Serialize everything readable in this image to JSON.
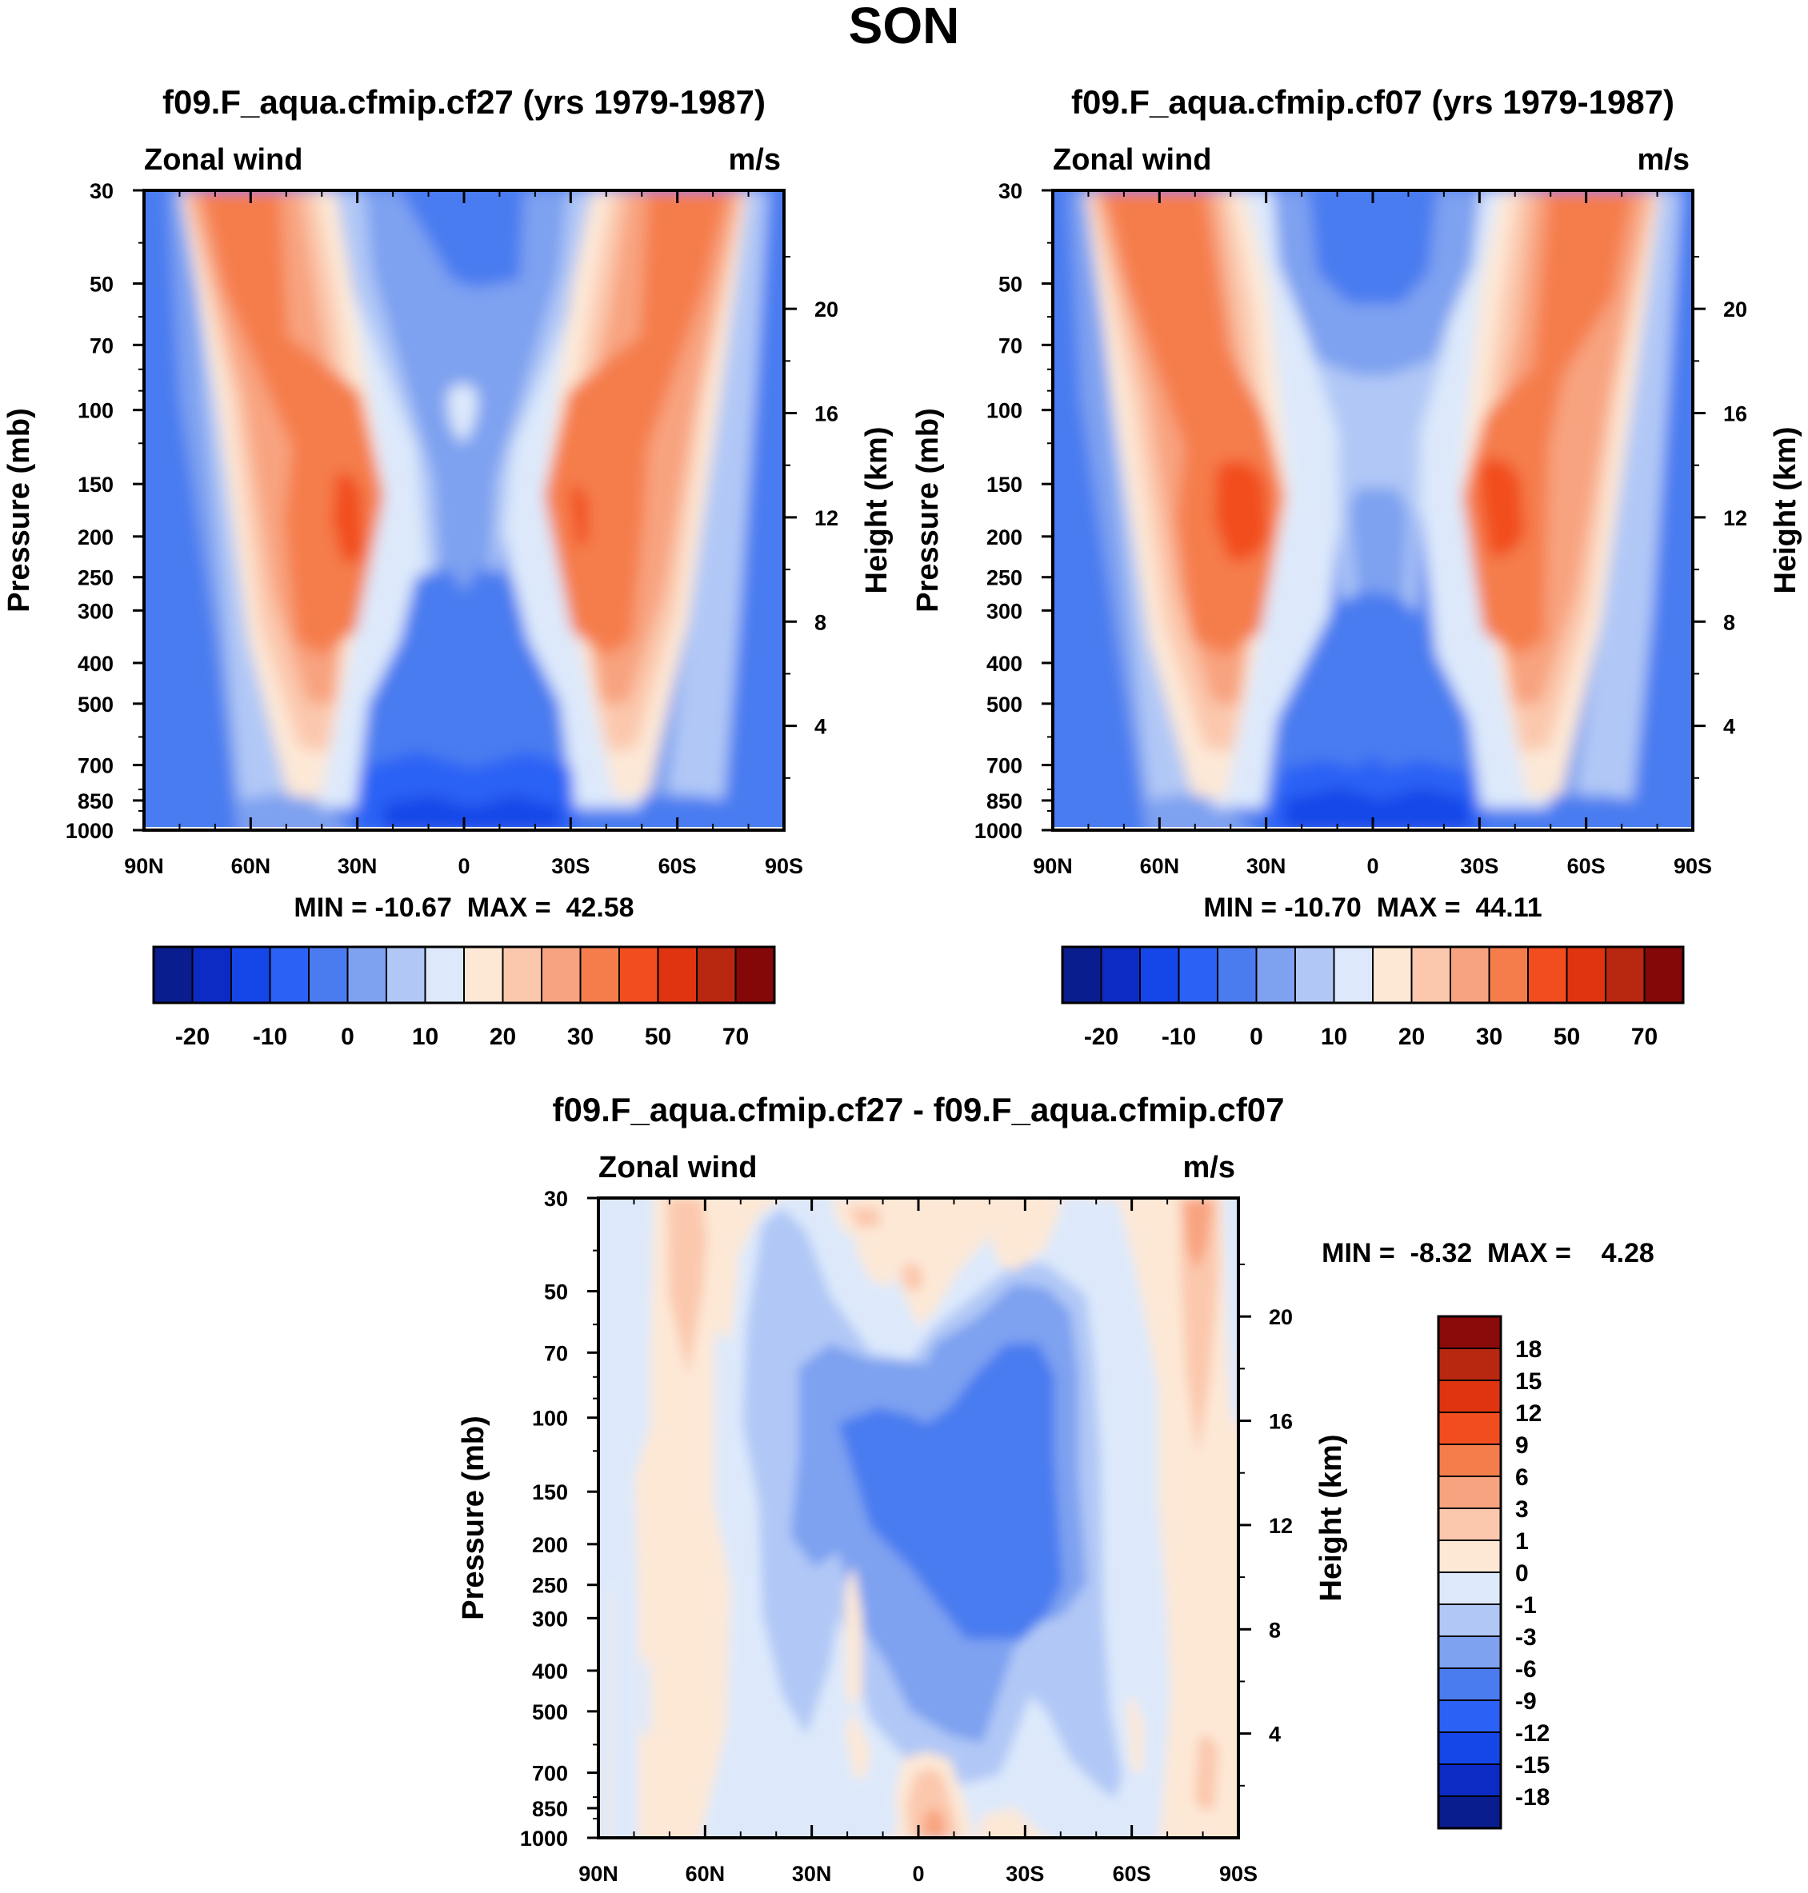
{
  "figure_title": "SON",
  "chart_data": [
    {
      "type": "heatmap",
      "title": "f09.F_aqua.cfmip.cf27 (yrs 1979-1987)",
      "variable": "Zonal wind",
      "units": "m/s",
      "ylabel": "Pressure (mb)",
      "ylabel_right": "Height (km)",
      "x_ticks": [
        "90N",
        "60N",
        "30N",
        "0",
        "30S",
        "60S",
        "90S"
      ],
      "pressure_ticks": [
        "30",
        "50",
        "70",
        "100",
        "150",
        "200",
        "250",
        "300",
        "400",
        "500",
        "700",
        "850",
        "1000"
      ],
      "height_ticks": [
        "20",
        "16",
        "12",
        "8",
        "4"
      ],
      "stats_text": "MIN = -10.67  MAX =  42.58",
      "min": -10.67,
      "max": 42.58,
      "colorbar_levels": [
        -25,
        -20,
        -15,
        -10,
        -5,
        0,
        5,
        10,
        15,
        20,
        25,
        30,
        40,
        50,
        60,
        70
      ],
      "colorbar_labels": [
        "-20",
        "-10",
        "0",
        "10",
        "20",
        "30",
        "50",
        "70"
      ],
      "jet_cores_m_per_s": [
        {
          "lat": "32N",
          "pressure_mb": 200,
          "value": 42.58
        },
        {
          "lat": "32S",
          "pressure_mb": 200,
          "value": 41
        }
      ]
    },
    {
      "type": "heatmap",
      "title": "f09.F_aqua.cfmip.cf07 (yrs 1979-1987)",
      "variable": "Zonal wind",
      "units": "m/s",
      "ylabel": "Pressure (mb)",
      "ylabel_right": "Height (km)",
      "x_ticks": [
        "90N",
        "60N",
        "30N",
        "0",
        "30S",
        "60S",
        "90S"
      ],
      "pressure_ticks": [
        "30",
        "50",
        "70",
        "100",
        "150",
        "200",
        "250",
        "300",
        "400",
        "500",
        "700",
        "850",
        "1000"
      ],
      "height_ticks": [
        "20",
        "16",
        "12",
        "8",
        "4"
      ],
      "stats_text": "MIN = -10.70  MAX =  44.11",
      "min": -10.7,
      "max": 44.11,
      "colorbar_levels": [
        -25,
        -20,
        -15,
        -10,
        -5,
        0,
        5,
        10,
        15,
        20,
        25,
        30,
        40,
        50,
        60,
        70
      ],
      "colorbar_labels": [
        "-20",
        "-10",
        "0",
        "10",
        "20",
        "30",
        "50",
        "70"
      ],
      "jet_cores_m_per_s": [
        {
          "lat": "30N",
          "pressure_mb": 180,
          "value": 44.11
        },
        {
          "lat": "30S",
          "pressure_mb": 180,
          "value": 44
        }
      ]
    },
    {
      "type": "heatmap",
      "title": "f09.F_aqua.cfmip.cf27 - f09.F_aqua.cfmip.cf07",
      "variable": "Zonal wind",
      "units": "m/s",
      "ylabel": "Pressure (mb)",
      "ylabel_right": "Height (km)",
      "x_ticks": [
        "90N",
        "60N",
        "30N",
        "0",
        "30S",
        "60S",
        "90S"
      ],
      "pressure_ticks": [
        "30",
        "50",
        "70",
        "100",
        "150",
        "200",
        "250",
        "300",
        "400",
        "500",
        "700",
        "850",
        "1000"
      ],
      "height_ticks": [
        "20",
        "16",
        "12",
        "8",
        "4"
      ],
      "stats_text": "MIN =  -8.32  MAX =    4.28",
      "min": -8.32,
      "max": 4.28,
      "colorbar_levels": [
        18,
        15,
        12,
        9,
        6,
        3,
        1,
        0,
        -1,
        -3,
        -6,
        -9,
        -12,
        -15,
        -18
      ],
      "colorbar_labels": [
        "18",
        "15",
        "12",
        "9",
        "6",
        "3",
        "1",
        "0",
        "-1",
        "-3",
        "-6",
        "-9",
        "-12",
        "-15",
        "-18"
      ]
    }
  ],
  "palettes": {
    "main": [
      "#0a1d8f",
      "#0b2bc4",
      "#1446e8",
      "#2b62f5",
      "#4a7cf0",
      "#7ea1f0",
      "#b1c8f6",
      "#dde9fb",
      "#fde8d6",
      "#fbc8ad",
      "#f8a37f",
      "#f57d4c",
      "#f24d1e",
      "#e03410",
      "#b82810",
      "#850808"
    ],
    "diff": [
      "#8b0a0a",
      "#b82810",
      "#e03410",
      "#f24d1e",
      "#f57d4c",
      "#f8a37f",
      "#fbc8ad",
      "#fde8d6",
      "#dde9fb",
      "#b1c8f6",
      "#7ea1f0",
      "#4a7cf0",
      "#2b62f5",
      "#1446e8",
      "#0b2bc4",
      "#0a1d8f"
    ]
  }
}
